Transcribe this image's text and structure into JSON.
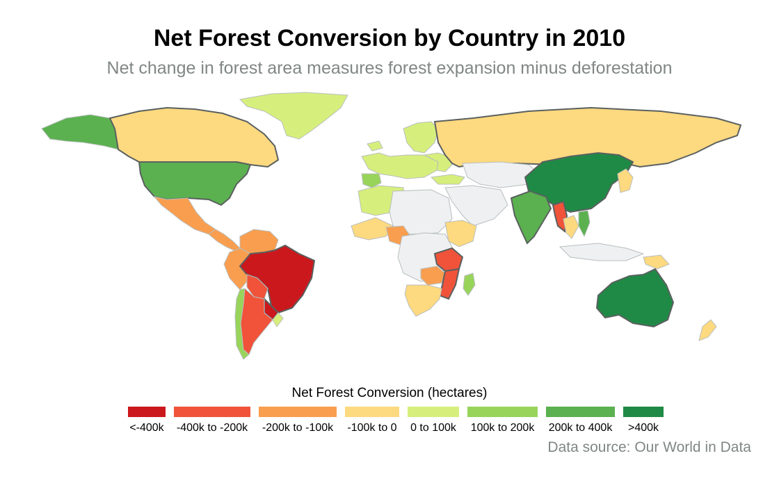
{
  "title": "Net Forest Conversion by Country in 2010",
  "subtitle": "Net change in forest area measures forest expansion minus deforestation",
  "legend": {
    "title": "Net Forest Conversion (hectares)",
    "bins": [
      {
        "label": "<-400k",
        "color": "#cb181d"
      },
      {
        "label": "-400k to -200k",
        "color": "#f0533a"
      },
      {
        "label": "-200k to -100k",
        "color": "#f99e4f"
      },
      {
        "label": "-100k to 0",
        "color": "#fdd97f"
      },
      {
        "label": "0 to 100k",
        "color": "#d6ef7c"
      },
      {
        "label": "100k to 200k",
        "color": "#98d45a"
      },
      {
        "label": "200k to 400k",
        "color": "#5bb14f"
      },
      {
        "label": ">400k",
        "color": "#1f8a45"
      }
    ]
  },
  "colors": {
    "no_data": "#eef0f1",
    "border": "#5a6060",
    "thin_border": "#b9bebe"
  },
  "map_data": {
    "regions": [
      {
        "name": "Alaska",
        "bin": 6
      },
      {
        "name": "Canada",
        "bin": 3
      },
      {
        "name": "Greenland",
        "bin": 4
      },
      {
        "name": "United States",
        "bin": 6
      },
      {
        "name": "Mexico",
        "bin": 2
      },
      {
        "name": "Central America",
        "bin": 2
      },
      {
        "name": "Colombia and Venezuela",
        "bin": 2
      },
      {
        "name": "Peru and Ecuador",
        "bin": 2
      },
      {
        "name": "Brazil",
        "bin": 0
      },
      {
        "name": "Bolivia",
        "bin": 1
      },
      {
        "name": "Paraguay",
        "bin": 0
      },
      {
        "name": "Argentina",
        "bin": 1
      },
      {
        "name": "Chile",
        "bin": 5
      },
      {
        "name": "Uruguay",
        "bin": 4
      },
      {
        "name": "Iceland",
        "bin": 4
      },
      {
        "name": "Scandinavia",
        "bin": 4
      },
      {
        "name": "Western Europe",
        "bin": 4
      },
      {
        "name": "Spain",
        "bin": 5
      },
      {
        "name": "Eastern Europe",
        "bin": 4
      },
      {
        "name": "Russia",
        "bin": 3
      },
      {
        "name": "Turkey",
        "bin": 4
      },
      {
        "name": "Central Asia",
        "bin": null
      },
      {
        "name": "Middle East",
        "bin": null
      },
      {
        "name": "Morocco and Algeria",
        "bin": 4
      },
      {
        "name": "Sahara",
        "bin": null
      },
      {
        "name": "West Africa coast",
        "bin": 3
      },
      {
        "name": "Nigeria",
        "bin": 2
      },
      {
        "name": "Central Africa",
        "bin": null
      },
      {
        "name": "Ethiopia",
        "bin": 3
      },
      {
        "name": "Tanzania",
        "bin": 1
      },
      {
        "name": "Zambia",
        "bin": 2
      },
      {
        "name": "Mozambique",
        "bin": 1
      },
      {
        "name": "Southern Africa",
        "bin": 3
      },
      {
        "name": "Madagascar",
        "bin": 5
      },
      {
        "name": "China",
        "bin": 7
      },
      {
        "name": "India",
        "bin": 6
      },
      {
        "name": "Myanmar",
        "bin": 1
      },
      {
        "name": "Thailand",
        "bin": 3
      },
      {
        "name": "Vietnam",
        "bin": 6
      },
      {
        "name": "Korea and Japan",
        "bin": 3
      },
      {
        "name": "Indonesia",
        "bin": null
      },
      {
        "name": "Papua New Guinea",
        "bin": 3
      },
      {
        "name": "Australia",
        "bin": 7
      },
      {
        "name": "New Zealand",
        "bin": 3
      }
    ]
  },
  "source": "Data source: Our World in Data"
}
